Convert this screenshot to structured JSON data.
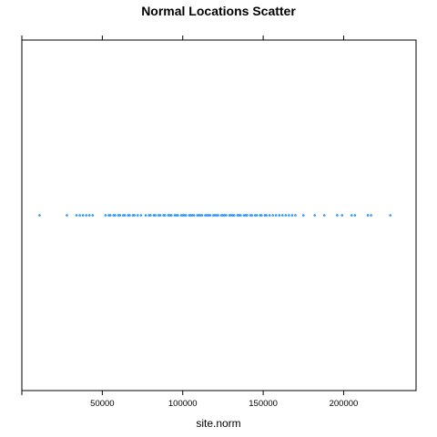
{
  "chart_data": {
    "type": "scatter",
    "title": "Normal Locations Scatter",
    "xlabel": "site.norm",
    "ylabel": "",
    "xlim": [
      0,
      245000
    ],
    "x_ticks": [
      50000,
      100000,
      150000,
      200000
    ],
    "x_tick_labels": [
      "50000",
      "100000",
      "150000",
      "200000"
    ],
    "grid": false,
    "point_color": "#0080ff",
    "x": [
      11000,
      28000,
      34000,
      36000,
      38000,
      40000,
      42000,
      44000,
      52000,
      54000,
      55000,
      57000,
      58000,
      60000,
      61000,
      63000,
      64000,
      66000,
      67000,
      69000,
      70000,
      72000,
      74000,
      77000,
      79000,
      80000,
      82000,
      83000,
      85000,
      86000,
      88000,
      89000,
      91000,
      92000,
      93000,
      95000,
      96000,
      97000,
      99000,
      100000,
      101000,
      102000,
      104000,
      105000,
      106000,
      107000,
      109000,
      110000,
      111000,
      112000,
      114000,
      115000,
      116000,
      117000,
      119000,
      120000,
      121000,
      122000,
      124000,
      125000,
      126000,
      127000,
      129000,
      130000,
      131000,
      132000,
      134000,
      135000,
      136000,
      138000,
      139000,
      140000,
      142000,
      143000,
      145000,
      146000,
      148000,
      149000,
      151000,
      152000,
      154000,
      156000,
      158000,
      160000,
      162000,
      164000,
      166000,
      168000,
      170000,
      175000,
      182000,
      188000,
      196000,
      199000,
      205000,
      207000,
      215000,
      217000,
      229000
    ],
    "y": [
      1,
      1,
      1,
      1,
      1,
      1,
      1,
      1,
      1,
      1,
      1,
      1,
      1,
      1,
      1,
      1,
      1,
      1,
      1,
      1,
      1,
      1,
      1,
      1,
      1,
      1,
      1,
      1,
      1,
      1,
      1,
      1,
      1,
      1,
      1,
      1,
      1,
      1,
      1,
      1,
      1,
      1,
      1,
      1,
      1,
      1,
      1,
      1,
      1,
      1,
      1,
      1,
      1,
      1,
      1,
      1,
      1,
      1,
      1,
      1,
      1,
      1,
      1,
      1,
      1,
      1,
      1,
      1,
      1,
      1,
      1,
      1,
      1,
      1,
      1,
      1,
      1,
      1,
      1,
      1,
      1,
      1,
      1,
      1,
      1,
      1,
      1,
      1,
      1,
      1,
      1,
      1,
      1,
      1,
      1,
      1,
      1,
      1,
      1
    ],
    "ylim": [
      0,
      2
    ]
  }
}
